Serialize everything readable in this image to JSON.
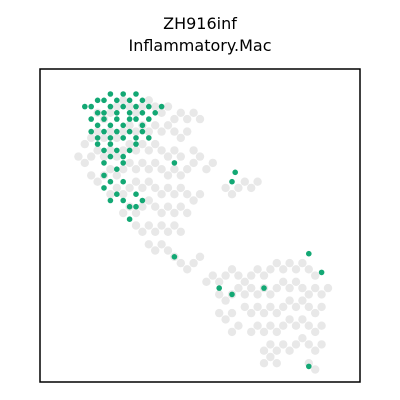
{
  "chart_data": {
    "type": "scatter",
    "title": "ZH916inf",
    "subtitle": "Inflammatory.Mac",
    "xlabel": "",
    "ylabel": "",
    "xlim": [
      0,
      100
    ],
    "ylim": [
      0,
      100
    ],
    "grid": false,
    "legend": "none",
    "axes_ticks": false,
    "colors": {
      "background_spots": "#e8e8e8",
      "highlight_spots": "#13a874",
      "frame": "#000000"
    },
    "series": [
      {
        "role": "background",
        "points": [
          [
            18,
            86
          ],
          [
            20,
            84
          ],
          [
            22,
            86
          ],
          [
            24,
            88
          ],
          [
            26,
            90
          ],
          [
            28,
            88
          ],
          [
            30,
            86
          ],
          [
            32,
            88
          ],
          [
            34,
            90
          ],
          [
            36,
            88
          ],
          [
            38,
            86
          ],
          [
            40,
            88
          ],
          [
            42,
            84
          ],
          [
            44,
            86
          ],
          [
            46,
            84
          ],
          [
            48,
            86
          ],
          [
            50,
            84
          ],
          [
            14,
            76
          ],
          [
            16,
            78
          ],
          [
            18,
            80
          ],
          [
            20,
            78
          ],
          [
            22,
            80
          ],
          [
            24,
            78
          ],
          [
            26,
            80
          ],
          [
            28,
            82
          ],
          [
            30,
            80
          ],
          [
            32,
            82
          ],
          [
            34,
            80
          ],
          [
            36,
            82
          ],
          [
            38,
            80
          ],
          [
            40,
            82
          ],
          [
            42,
            80
          ],
          [
            44,
            78
          ],
          [
            46,
            80
          ],
          [
            12,
            72
          ],
          [
            14,
            70
          ],
          [
            16,
            72
          ],
          [
            18,
            74
          ],
          [
            20,
            72
          ],
          [
            22,
            74
          ],
          [
            24,
            72
          ],
          [
            26,
            74
          ],
          [
            28,
            76
          ],
          [
            30,
            74
          ],
          [
            32,
            76
          ],
          [
            34,
            74
          ],
          [
            36,
            76
          ],
          [
            38,
            74
          ],
          [
            40,
            72
          ],
          [
            42,
            74
          ],
          [
            44,
            72
          ],
          [
            48,
            74
          ],
          [
            50,
            72
          ],
          [
            16,
            66
          ],
          [
            18,
            64
          ],
          [
            20,
            66
          ],
          [
            22,
            68
          ],
          [
            24,
            66
          ],
          [
            26,
            68
          ],
          [
            28,
            70
          ],
          [
            30,
            68
          ],
          [
            32,
            70
          ],
          [
            34,
            68
          ],
          [
            36,
            70
          ],
          [
            38,
            68
          ],
          [
            40,
            66
          ],
          [
            42,
            68
          ],
          [
            44,
            66
          ],
          [
            46,
            68
          ],
          [
            48,
            70
          ],
          [
            52,
            68
          ],
          [
            54,
            70
          ],
          [
            22,
            60
          ],
          [
            24,
            62
          ],
          [
            26,
            60
          ],
          [
            28,
            62
          ],
          [
            30,
            64
          ],
          [
            32,
            62
          ],
          [
            34,
            64
          ],
          [
            36,
            62
          ],
          [
            38,
            60
          ],
          [
            40,
            62
          ],
          [
            42,
            60
          ],
          [
            44,
            62
          ],
          [
            46,
            60
          ],
          [
            48,
            58
          ],
          [
            50,
            60
          ],
          [
            26,
            54
          ],
          [
            28,
            56
          ],
          [
            30,
            54
          ],
          [
            32,
            56
          ],
          [
            34,
            58
          ],
          [
            36,
            56
          ],
          [
            38,
            54
          ],
          [
            40,
            56
          ],
          [
            42,
            54
          ],
          [
            44,
            56
          ],
          [
            46,
            54
          ],
          [
            30,
            50
          ],
          [
            32,
            48
          ],
          [
            34,
            50
          ],
          [
            36,
            48
          ],
          [
            38,
            50
          ],
          [
            40,
            48
          ],
          [
            42,
            50
          ],
          [
            44,
            48
          ],
          [
            34,
            44
          ],
          [
            36,
            42
          ],
          [
            38,
            44
          ],
          [
            40,
            42
          ],
          [
            42,
            40
          ],
          [
            44,
            38
          ],
          [
            46,
            36
          ],
          [
            48,
            38
          ],
          [
            50,
            40
          ],
          [
            58,
            62
          ],
          [
            60,
            60
          ],
          [
            62,
            62
          ],
          [
            64,
            64
          ],
          [
            66,
            62
          ],
          [
            68,
            64
          ],
          [
            52,
            32
          ],
          [
            54,
            34
          ],
          [
            56,
            32
          ],
          [
            58,
            34
          ],
          [
            60,
            36
          ],
          [
            62,
            34
          ],
          [
            64,
            32
          ],
          [
            66,
            34
          ],
          [
            68,
            36
          ],
          [
            70,
            34
          ],
          [
            72,
            36
          ],
          [
            74,
            38
          ],
          [
            76,
            36
          ],
          [
            78,
            38
          ],
          [
            80,
            36
          ],
          [
            82,
            38
          ],
          [
            84,
            36
          ],
          [
            86,
            34
          ],
          [
            56,
            28
          ],
          [
            58,
            26
          ],
          [
            60,
            28
          ],
          [
            62,
            30
          ],
          [
            64,
            28
          ],
          [
            66,
            30
          ],
          [
            68,
            28
          ],
          [
            70,
            30
          ],
          [
            72,
            28
          ],
          [
            74,
            30
          ],
          [
            76,
            32
          ],
          [
            78,
            30
          ],
          [
            80,
            32
          ],
          [
            82,
            30
          ],
          [
            84,
            28
          ],
          [
            86,
            30
          ],
          [
            88,
            28
          ],
          [
            90,
            30
          ],
          [
            56,
            22
          ],
          [
            58,
            20
          ],
          [
            60,
            22
          ],
          [
            64,
            24
          ],
          [
            66,
            22
          ],
          [
            68,
            24
          ],
          [
            70,
            22
          ],
          [
            72,
            24
          ],
          [
            74,
            22
          ],
          [
            76,
            24
          ],
          [
            78,
            26
          ],
          [
            80,
            24
          ],
          [
            82,
            26
          ],
          [
            84,
            24
          ],
          [
            86,
            22
          ],
          [
            88,
            24
          ],
          [
            60,
            16
          ],
          [
            62,
            18
          ],
          [
            66,
            16
          ],
          [
            68,
            18
          ],
          [
            70,
            16
          ],
          [
            72,
            18
          ],
          [
            74,
            16
          ],
          [
            76,
            18
          ],
          [
            78,
            20
          ],
          [
            80,
            18
          ],
          [
            82,
            20
          ],
          [
            84,
            18
          ],
          [
            86,
            16
          ],
          [
            88,
            18
          ],
          [
            70,
            10
          ],
          [
            72,
            12
          ],
          [
            74,
            10
          ],
          [
            76,
            12
          ],
          [
            78,
            10
          ],
          [
            80,
            12
          ],
          [
            82,
            14
          ],
          [
            84,
            12
          ],
          [
            86,
            10
          ],
          [
            88,
            12
          ],
          [
            70,
            6
          ],
          [
            72,
            8
          ],
          [
            74,
            6
          ],
          [
            84,
            6
          ],
          [
            86,
            4
          ]
        ]
      },
      {
        "role": "highlight",
        "name": "",
        "points": [
          [
            14,
            88
          ],
          [
            16,
            88
          ],
          [
            18,
            90
          ],
          [
            20,
            90
          ],
          [
            22,
            92
          ],
          [
            24,
            90
          ],
          [
            26,
            92
          ],
          [
            28,
            90
          ],
          [
            30,
            92
          ],
          [
            32,
            90
          ],
          [
            34,
            88
          ],
          [
            18,
            86
          ],
          [
            20,
            86
          ],
          [
            22,
            88
          ],
          [
            24,
            86
          ],
          [
            26,
            88
          ],
          [
            28,
            86
          ],
          [
            30,
            88
          ],
          [
            32,
            86
          ],
          [
            16,
            84
          ],
          [
            18,
            82
          ],
          [
            20,
            84
          ],
          [
            22,
            82
          ],
          [
            24,
            84
          ],
          [
            26,
            82
          ],
          [
            28,
            84
          ],
          [
            30,
            84
          ],
          [
            32,
            82
          ],
          [
            34,
            84
          ],
          [
            36,
            86
          ],
          [
            38,
            88
          ],
          [
            16,
            80
          ],
          [
            18,
            78
          ],
          [
            20,
            80
          ],
          [
            22,
            78
          ],
          [
            24,
            80
          ],
          [
            26,
            78
          ],
          [
            28,
            80
          ],
          [
            30,
            78
          ],
          [
            32,
            80
          ],
          [
            34,
            78
          ],
          [
            18,
            76
          ],
          [
            20,
            74
          ],
          [
            22,
            76
          ],
          [
            24,
            74
          ],
          [
            26,
            72
          ],
          [
            28,
            74
          ],
          [
            30,
            76
          ],
          [
            20,
            70
          ],
          [
            22,
            72
          ],
          [
            24,
            68
          ],
          [
            26,
            70
          ],
          [
            20,
            66
          ],
          [
            22,
            64
          ],
          [
            26,
            64
          ],
          [
            20,
            62
          ],
          [
            24,
            60
          ],
          [
            26,
            58
          ],
          [
            22,
            58
          ],
          [
            28,
            56
          ],
          [
            30,
            60
          ],
          [
            30,
            56
          ],
          [
            32,
            58
          ],
          [
            28,
            52
          ],
          [
            42,
            70
          ],
          [
            61,
            67
          ],
          [
            60,
            64
          ],
          [
            42,
            40
          ],
          [
            84,
            41
          ],
          [
            88,
            35
          ],
          [
            56,
            30
          ],
          [
            60,
            28
          ],
          [
            70,
            30
          ],
          [
            84,
            5
          ]
        ]
      }
    ]
  }
}
